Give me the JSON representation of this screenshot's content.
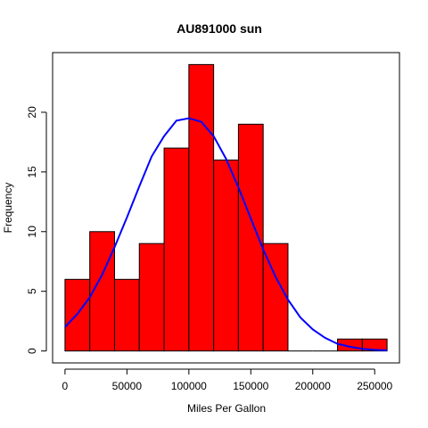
{
  "chart_data": {
    "type": "bar",
    "title": "AU891000 sun",
    "xlabel": "Miles Per Gallon",
    "ylabel": "Frequency",
    "bins": [
      {
        "start": 0,
        "end": 20000,
        "count": 6
      },
      {
        "start": 20000,
        "end": 40000,
        "count": 10
      },
      {
        "start": 40000,
        "end": 60000,
        "count": 6
      },
      {
        "start": 60000,
        "end": 80000,
        "count": 9
      },
      {
        "start": 80000,
        "end": 100000,
        "count": 17
      },
      {
        "start": 100000,
        "end": 120000,
        "count": 24
      },
      {
        "start": 120000,
        "end": 140000,
        "count": 16
      },
      {
        "start": 140000,
        "end": 160000,
        "count": 19
      },
      {
        "start": 160000,
        "end": 180000,
        "count": 9
      },
      {
        "start": 180000,
        "end": 200000,
        "count": 0
      },
      {
        "start": 200000,
        "end": 220000,
        "count": 0
      },
      {
        "start": 220000,
        "end": 240000,
        "count": 1
      },
      {
        "start": 240000,
        "end": 260000,
        "count": 1
      }
    ],
    "xticks": [
      0,
      50000,
      100000,
      150000,
      200000,
      250000
    ],
    "yticks": [
      0,
      5,
      10,
      15,
      20
    ],
    "xlim": [
      -10000,
      270000
    ],
    "ylim": [
      -1,
      25
    ],
    "density_curve": {
      "x": [
        0,
        10000,
        20000,
        30000,
        40000,
        50000,
        60000,
        70000,
        80000,
        90000,
        100000,
        110000,
        120000,
        130000,
        140000,
        150000,
        160000,
        170000,
        180000,
        190000,
        200000,
        210000,
        220000,
        230000,
        240000,
        250000,
        260000
      ],
      "y": [
        2.0,
        3.1,
        4.5,
        6.4,
        8.7,
        11.2,
        13.8,
        16.3,
        18.0,
        19.3,
        19.5,
        19.2,
        18.0,
        16.1,
        13.7,
        11.1,
        8.5,
        6.2,
        4.3,
        2.8,
        1.8,
        1.1,
        0.6,
        0.35,
        0.18,
        0.09,
        0.05
      ],
      "color": "#0000ff"
    },
    "bar_color": "#ff0000",
    "grid": false,
    "legend": "none"
  }
}
